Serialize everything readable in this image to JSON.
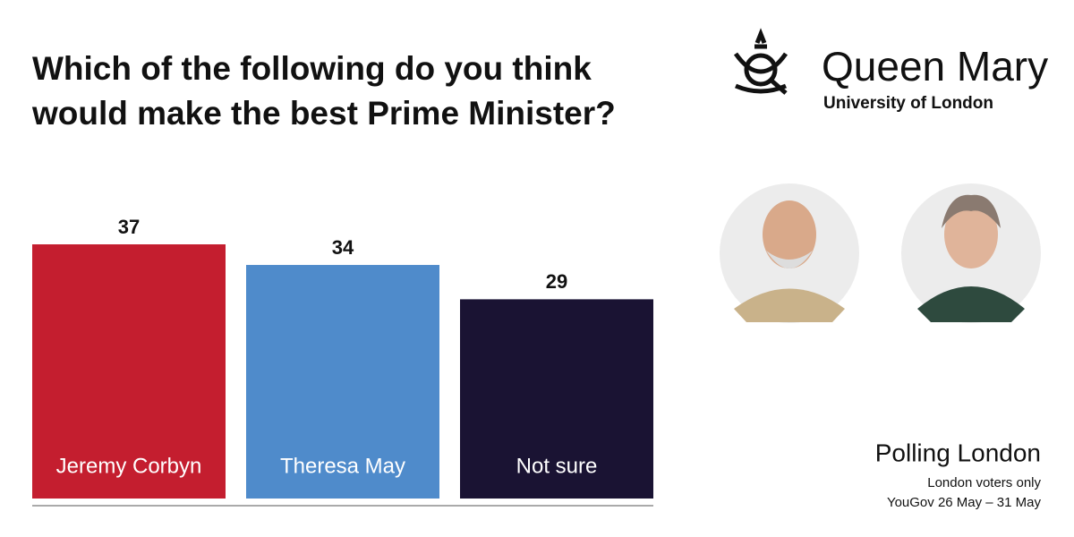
{
  "chart_data": {
    "type": "bar",
    "title": "Which of the following do you think would make the best Prime Minister?",
    "categories": [
      "Jeremy Corbyn",
      "Theresa May",
      "Not sure"
    ],
    "values": [
      37,
      34,
      29
    ],
    "colors": [
      "#c41e2f",
      "#4f8bcb",
      "#1a1333"
    ]
  },
  "logo": {
    "name": "Queen Mary",
    "subtitle": "University of London"
  },
  "footer": {
    "title": "Polling London",
    "note": "London voters only",
    "source": "YouGov 26 May – 31 May"
  }
}
